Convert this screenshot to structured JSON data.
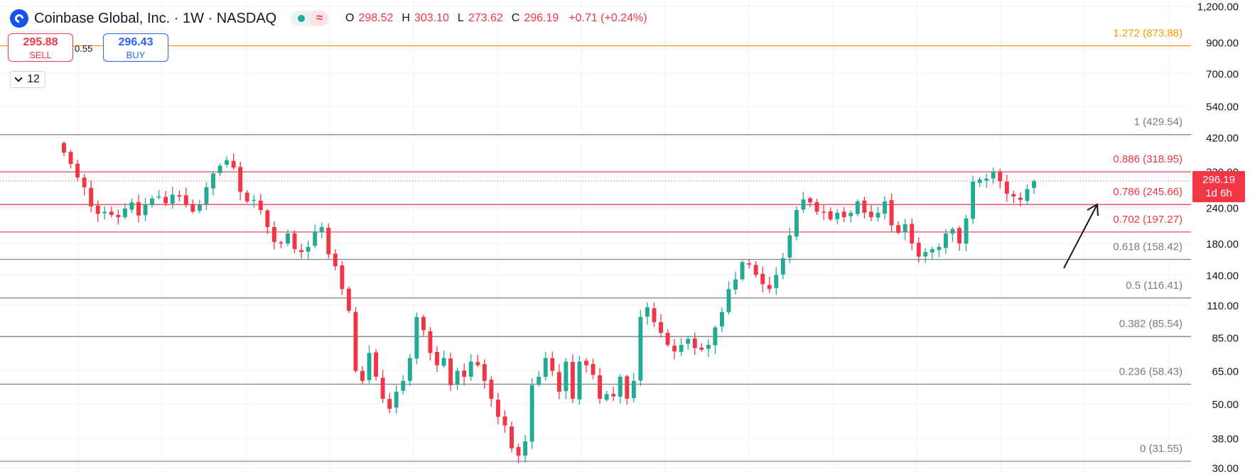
{
  "header": {
    "symbol_title": "Coinbase Global, Inc. · 1W · NASDAQ",
    "status_icon": "wave-icon",
    "ohlc": {
      "open_label": "O",
      "open": "298.52",
      "high_label": "H",
      "high": "303.10",
      "low_label": "L",
      "low": "273.62",
      "close_label": "C",
      "close": "296.19",
      "change": "+0.71 (+0.24%)"
    }
  },
  "trade": {
    "sell_price": "295.88",
    "sell_label": "SELL",
    "spread": "0.55",
    "buy_price": "296.43",
    "buy_label": "BUY"
  },
  "indicators": {
    "collapse_count": "12"
  },
  "price_badge": {
    "price": "296.19",
    "countdown": "1d 6h"
  },
  "colors": {
    "up": "#22ab94",
    "down": "#f23645",
    "fib_gray": "#787b86",
    "fib_red": "#f23645",
    "fib_orange": "#ff9800",
    "grid": "#f0f3fa"
  },
  "chart_data": {
    "type": "candlestick",
    "y_scale": "log",
    "ylim": [
      28.5,
      1260
    ],
    "y_ticks": [
      "30.00",
      "38.00",
      "50.00",
      "65.00",
      "85.00",
      "110.00",
      "140.00",
      "180.00",
      "240.00",
      "320.00",
      "420.00",
      "540.00",
      "700.00",
      "900.00",
      "1,200.00"
    ],
    "fib_levels": [
      {
        "ratio": 1.272,
        "price": 873.88,
        "label": "1.272 (873.88)",
        "color": "orange"
      },
      {
        "ratio": 1,
        "price": 429.54,
        "label": "1 (429.54)",
        "color": "gray"
      },
      {
        "ratio": 0.886,
        "price": 318.95,
        "label": "0.886 (318.95)",
        "color": "red"
      },
      {
        "ratio": 0.786,
        "price": 245.66,
        "label": "0.786 (245.66)",
        "color": "red"
      },
      {
        "ratio": 0.702,
        "price": 197.27,
        "label": "0.702 (197.27)",
        "color": "red"
      },
      {
        "ratio": 0.618,
        "price": 158.42,
        "label": "0.618 (158.42)",
        "color": "gray"
      },
      {
        "ratio": 0.5,
        "price": 116.41,
        "label": "0.5 (116.41)",
        "color": "gray"
      },
      {
        "ratio": 0.382,
        "price": 85.54,
        "label": "0.382 (85.54)",
        "color": "gray"
      },
      {
        "ratio": 0.236,
        "price": 58.43,
        "label": "0.236 (58.43)",
        "color": "gray"
      },
      {
        "ratio": 0,
        "price": 31.55,
        "label": "0 (31.55)",
        "color": "gray"
      }
    ],
    "current_price": 296.19,
    "annotation": "up-arrow",
    "closes": [
      372,
      340,
      305,
      282,
      242,
      228,
      232,
      226,
      222,
      238,
      250,
      225,
      245,
      258,
      262,
      248,
      266,
      262,
      245,
      232,
      245,
      282,
      315,
      335,
      350,
      330,
      272,
      252,
      255,
      235,
      205,
      182,
      180,
      195,
      172,
      168,
      175,
      198,
      205,
      165,
      150,
      125,
      105,
      65,
      60,
      75,
      62,
      52,
      48,
      55,
      60,
      72,
      100,
      90,
      75,
      68,
      72,
      58,
      65,
      62,
      70,
      68,
      60,
      52,
      45,
      42,
      35,
      33,
      37,
      58,
      62,
      72,
      65,
      55,
      70,
      52,
      70,
      68,
      63,
      52,
      54,
      53,
      62,
      52,
      60,
      100,
      108,
      96,
      88,
      80,
      76,
      80,
      84,
      78,
      77,
      80,
      92,
      104,
      125,
      135,
      155,
      152,
      140,
      130,
      125,
      140,
      160,
      192,
      235,
      256,
      250,
      232,
      232,
      218,
      230,
      222,
      230,
      252,
      230,
      222,
      230,
      252,
      208,
      196,
      210,
      180,
      162,
      168,
      172,
      175,
      195,
      202,
      180,
      220,
      295,
      300,
      302,
      320,
      296,
      268,
      262,
      255,
      278,
      296
    ]
  }
}
